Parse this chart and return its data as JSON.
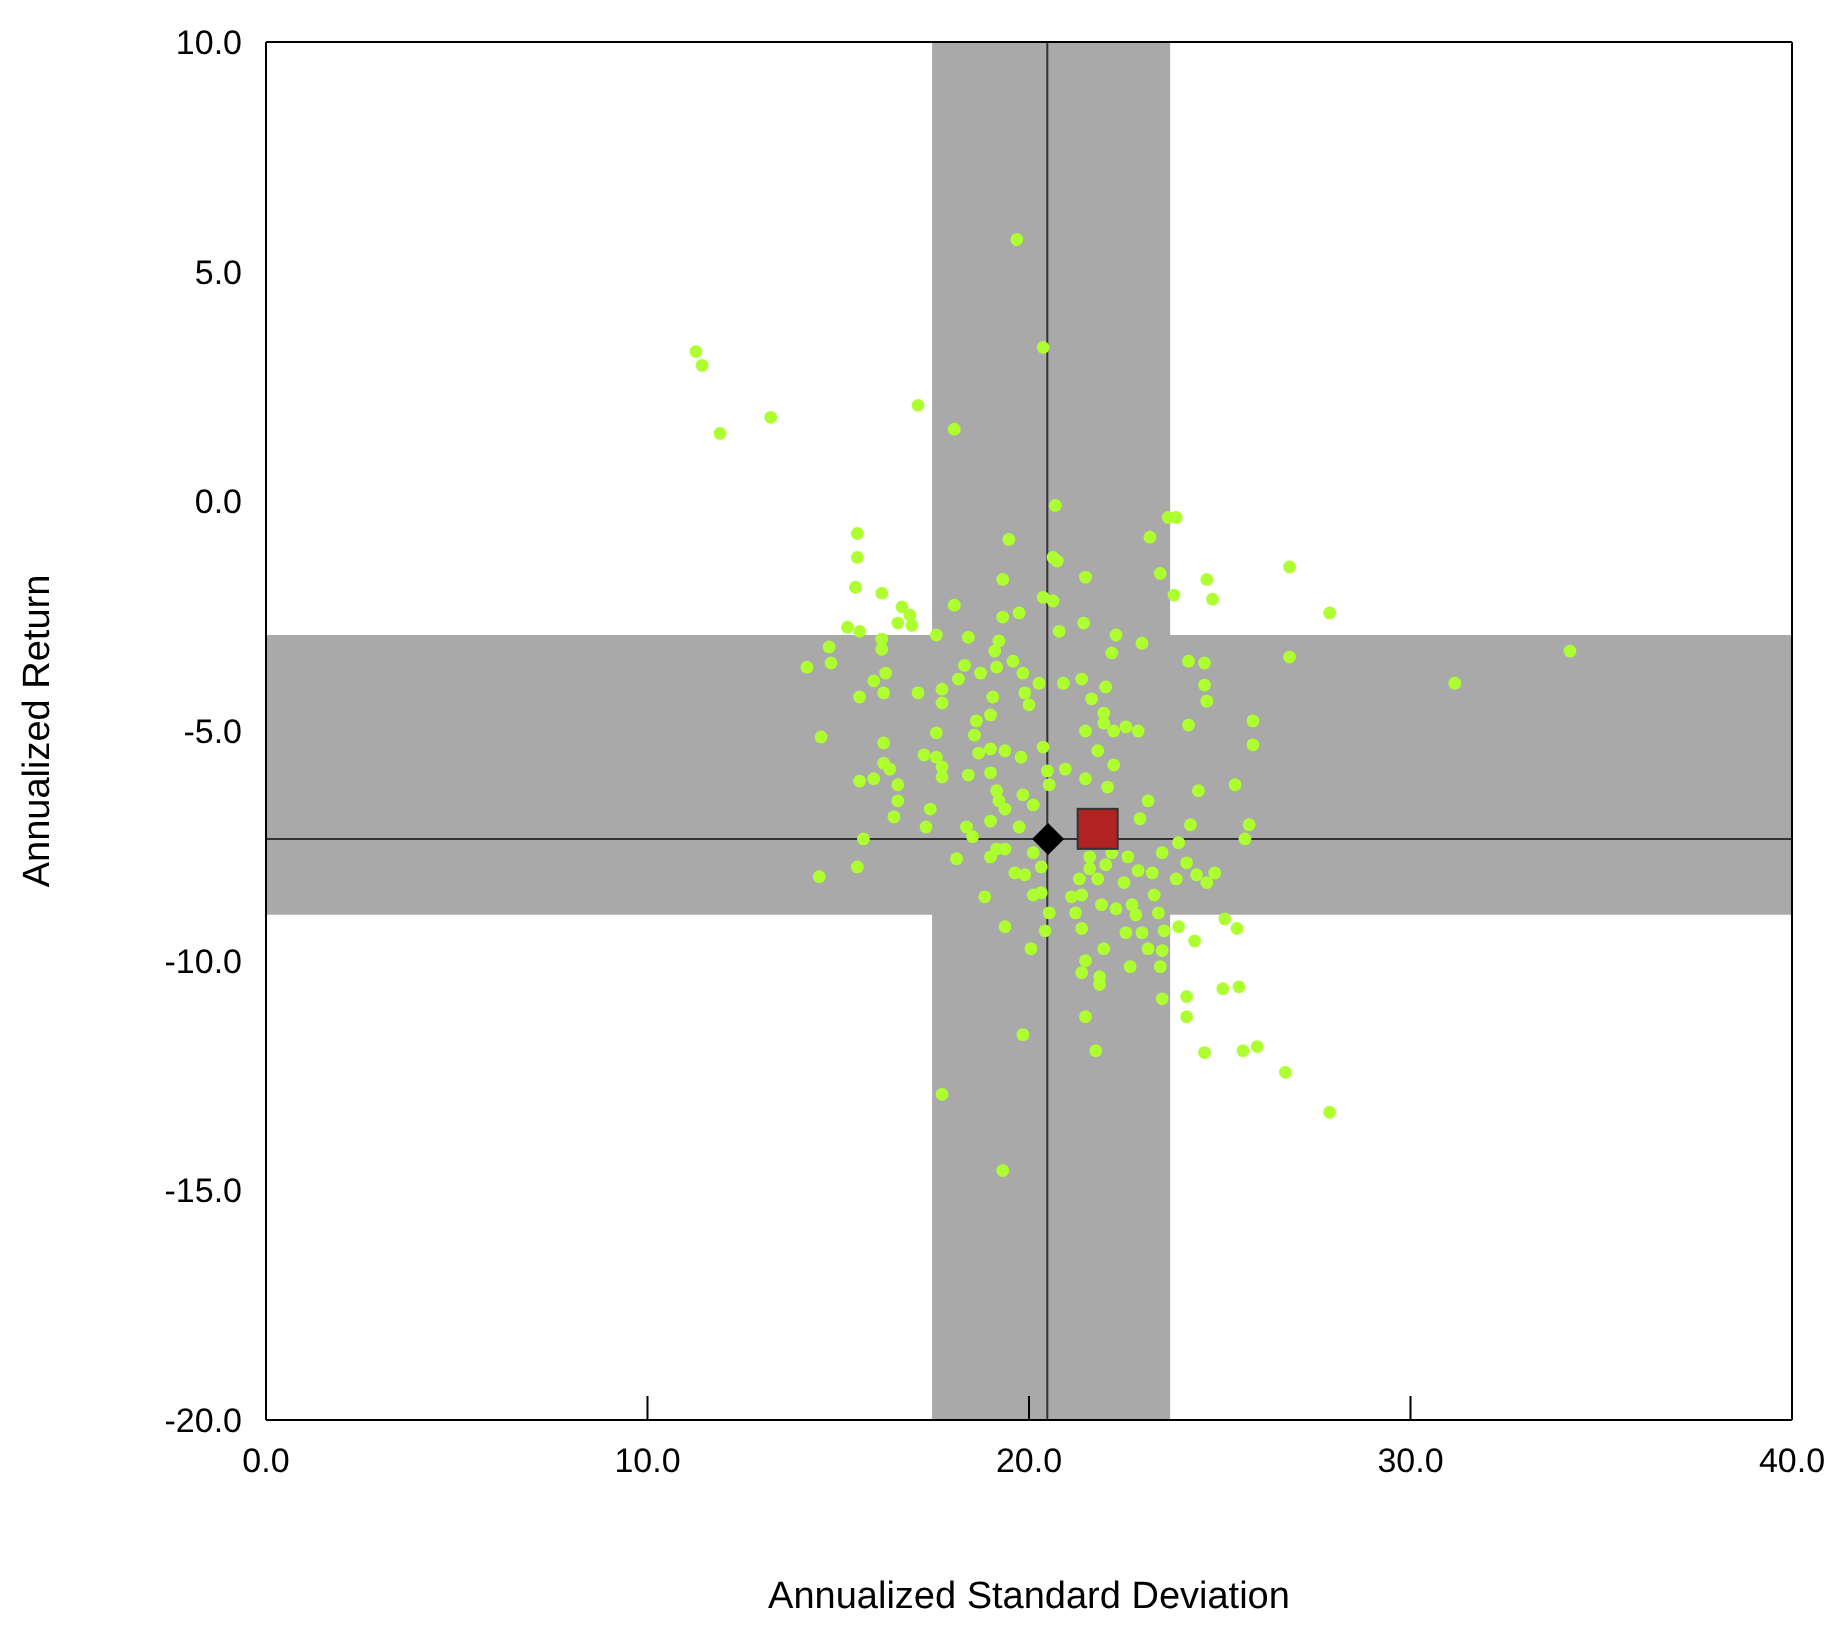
{
  "chart_data": {
    "type": "scatter",
    "xlabel": "Annualized Standard Deviation",
    "ylabel": "Annualized Return",
    "xlim": [
      0,
      40
    ],
    "ylim": [
      -20,
      10
    ],
    "xticks": [
      {
        "value": 0,
        "label": "0.0"
      },
      {
        "value": 10,
        "label": "10.0"
      },
      {
        "value": 20,
        "label": "20.0"
      },
      {
        "value": 30,
        "label": "30.0"
      },
      {
        "value": 40,
        "label": "40.0"
      }
    ],
    "yticks": [
      {
        "value": -20,
        "label": "-20.0"
      },
      {
        "value": -15,
        "label": "-15.0"
      },
      {
        "value": -10,
        "label": "-10.0"
      },
      {
        "value": -5,
        "label": "-5.0"
      },
      {
        "value": 0,
        "label": "0.0"
      },
      {
        "value": 5,
        "label": "5.0"
      },
      {
        "value": 10,
        "label": "10.0"
      }
    ],
    "grid": false,
    "bands": [
      {
        "axis": "x",
        "from": 17.46,
        "to": 23.7,
        "color": "#a9a9a9"
      },
      {
        "axis": "y",
        "from": -9.0,
        "to": -2.91,
        "color": "#a9a9a9"
      }
    ],
    "ref_lines": [
      {
        "axis": "x",
        "value": 20.48,
        "color": "#333333"
      },
      {
        "axis": "y",
        "value": -7.35,
        "color": "#333333"
      }
    ],
    "series": [
      {
        "color": "#adff2f",
        "marker": "circle",
        "x": [
          11.27,
          11.43,
          11.9,
          13.23,
          17.09,
          18.04,
          19.68,
          20.37,
          20.69,
          20.74,
          23.65,
          23.86,
          23.17,
          23.44,
          24.66,
          23.8,
          24.81,
          26.83,
          27.88,
          21.48,
          20.63,
          20.37,
          20.63,
          19.74,
          20.79,
          21.43,
          22.28,
          22.96,
          22.17,
          24.18,
          24.6,
          26.83,
          24.6,
          21.38,
          22.01,
          31.16,
          34.18,
          15.5,
          15.5,
          15.45,
          16.14,
          16.67,
          16.88,
          16.93,
          16.56,
          15.24,
          15.56,
          18.04,
          19.47,
          19.31,
          19.31,
          17.57,
          18.41,
          19.21,
          19.1,
          14.76,
          14.81,
          14.18,
          16.14,
          16.14,
          15.93,
          16.24,
          18.31,
          18.73,
          19.58,
          19.84,
          20.9,
          17.72,
          14.55,
          15.56,
          16.19,
          17.09,
          17.72,
          18.15,
          19.15,
          19.05,
          19.89,
          20.0,
          20.26,
          18.62,
          18.99,
          17.57,
          16.19,
          18.57,
          17.25,
          17.57,
          17.72,
          16.19,
          16.35,
          15.93,
          15.56,
          16.56,
          17.72,
          18.41,
          16.56,
          16.46,
          17.41,
          17.3,
          18.68,
          18.99,
          19.37,
          18.99,
          19.15,
          19.21,
          19.37,
          19.79,
          20.37,
          20.48,
          19.84,
          20.11,
          20.53,
          18.99,
          18.36,
          15.66,
          18.52,
          19.74,
          18.99,
          19.15,
          19.37,
          20.11,
          18.1,
          15.5,
          14.5,
          19.63,
          19.89,
          20.32,
          18.84,
          20.11,
          20.32,
          20.53,
          19.37,
          20.42,
          20.05,
          19.84,
          17.72,
          19.31,
          24.66,
          25.87,
          25.87,
          25.4,
          24.18,
          21.64,
          21.96,
          21.96,
          22.22,
          22.54,
          22.86,
          21.48,
          21.8,
          22.22,
          21.48,
          22.06,
          20.95,
          23.12,
          24.44,
          22.91,
          24.23,
          23.92,
          23.49,
          22.59,
          22.17,
          21.59,
          22.01,
          21.59,
          21.32,
          21.8,
          22.86,
          23.23,
          23.86,
          24.13,
          24.39,
          24.87,
          24.66,
          25.66,
          25.77,
          22.49,
          23.28,
          21.11,
          21.38,
          21.22,
          21.9,
          22.7,
          22.8,
          23.39,
          22.28,
          21.38,
          22.54,
          22.96,
          23.54,
          23.12,
          23.49,
          21.96,
          21.48,
          21.38,
          21.85,
          21.85,
          22.65,
          23.44,
          23.92,
          24.34,
          25.13,
          25.45,
          23.49,
          24.13,
          24.13,
          25.08,
          25.5,
          21.48,
          21.75,
          24.6,
          25.61,
          25.98,
          26.72,
          27.88
        ],
        "values": [
          3.26,
          2.96,
          1.48,
          1.83,
          2.09,
          1.57,
          5.7,
          3.35,
          -0.09,
          -1.3,
          -0.35,
          -0.35,
          -0.78,
          -1.57,
          -1.7,
          -2.04,
          -2.13,
          -1.43,
          -2.43,
          -1.65,
          -1.22,
          -2.09,
          -2.17,
          -2.43,
          -2.83,
          -2.65,
          -2.91,
          -3.09,
          -3.3,
          -3.48,
          -3.52,
          -3.39,
          -4.0,
          -3.87,
          -4.04,
          -3.96,
          -3.26,
          -0.7,
          -1.22,
          -1.87,
          -2.0,
          -2.3,
          -2.48,
          -2.7,
          -2.65,
          -2.74,
          -2.83,
          -2.26,
          -0.83,
          -1.7,
          -2.52,
          -2.91,
          -2.96,
          -3.04,
          -3.26,
          -3.17,
          -3.52,
          -3.61,
          -3.0,
          -3.22,
          -3.91,
          -3.74,
          -3.57,
          -3.74,
          -3.48,
          -3.74,
          -3.96,
          -4.09,
          -5.13,
          -4.26,
          -4.17,
          -4.17,
          -4.39,
          -3.87,
          -3.61,
          -4.26,
          -4.17,
          -4.43,
          -3.96,
          -4.78,
          -4.65,
          -5.04,
          -5.26,
          -5.09,
          -5.52,
          -5.57,
          -5.78,
          -5.7,
          -5.83,
          -6.04,
          -6.09,
          -6.17,
          -6.0,
          -5.96,
          -6.52,
          -6.87,
          -6.7,
          -7.09,
          -5.48,
          -5.39,
          -5.43,
          -5.91,
          -6.3,
          -6.52,
          -6.7,
          -5.57,
          -5.35,
          -5.87,
          -6.39,
          -6.61,
          -6.17,
          -6.96,
          -7.09,
          -7.35,
          -7.3,
          -7.09,
          -7.74,
          -7.57,
          -7.57,
          -7.65,
          -7.78,
          -7.96,
          -8.17,
          -8.09,
          -8.13,
          -7.96,
          -8.61,
          -8.57,
          -8.52,
          -8.96,
          -9.26,
          -9.35,
          -9.74,
          -11.61,
          -12.91,
          -14.57,
          -4.35,
          -4.78,
          -5.3,
          -6.17,
          -4.87,
          -4.3,
          -4.61,
          -4.83,
          -5.0,
          -4.91,
          -5.0,
          -5.0,
          -5.43,
          -5.74,
          -6.04,
          -6.22,
          -5.83,
          -6.52,
          -6.3,
          -6.91,
          -7.04,
          -7.43,
          -7.65,
          -7.74,
          -7.65,
          -7.74,
          -7.91,
          -8.0,
          -8.22,
          -8.22,
          -8.04,
          -8.09,
          -8.22,
          -7.87,
          -8.13,
          -8.09,
          -8.3,
          -7.35,
          -7.04,
          -8.3,
          -8.57,
          -8.61,
          -8.57,
          -8.96,
          -8.78,
          -8.78,
          -9.0,
          -8.96,
          -8.87,
          -9.3,
          -9.39,
          -9.39,
          -9.35,
          -9.74,
          -9.78,
          -9.74,
          -10.0,
          -10.26,
          -10.35,
          -10.52,
          -10.13,
          -10.13,
          -9.26,
          -9.57,
          -9.09,
          -9.3,
          -10.83,
          -10.78,
          -11.22,
          -10.61,
          -10.57,
          -11.22,
          -11.96,
          -12.0,
          -11.96,
          -11.87,
          -12.43,
          -13.3
        ]
      },
      {
        "color": "#000000",
        "marker": "diamond",
        "x": [
          20.5
        ],
        "values": [
          -7.35
        ]
      },
      {
        "color": "#b22222",
        "marker": "square",
        "x": [
          21.8
        ],
        "values": [
          -7.13
        ]
      }
    ]
  }
}
